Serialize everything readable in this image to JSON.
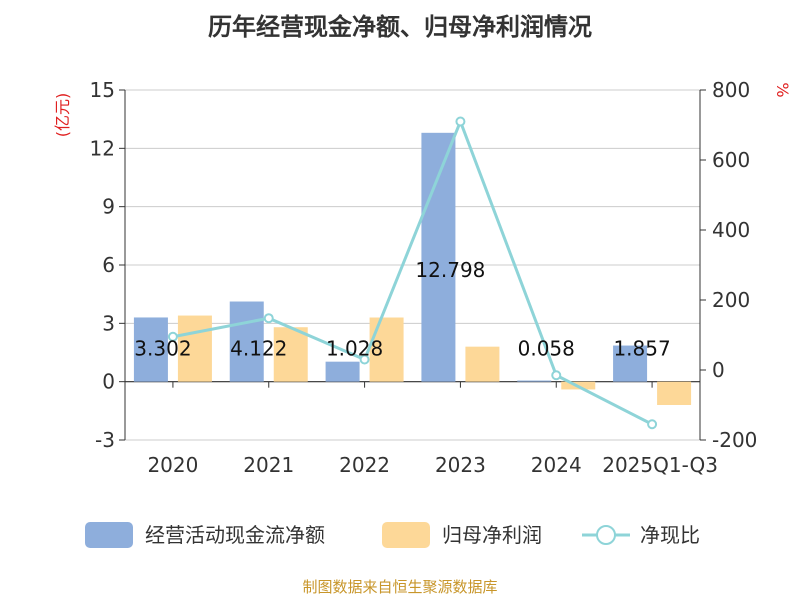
{
  "title": "历年经营现金净额、归母净利润情况",
  "source": "制图数据来自恒生聚源数据库",
  "chart_data": {
    "type": "bar",
    "title": "历年经营现金净额、归母净利润情况",
    "categories": [
      "2020",
      "2021",
      "2022",
      "2023",
      "2024",
      "2025Q1-Q3"
    ],
    "y_left": {
      "label": "(亿元)",
      "min": -3,
      "max": 15,
      "ticks": [
        "15",
        "12",
        "9",
        "6",
        "3",
        "0",
        "-3"
      ]
    },
    "y_right": {
      "label": "%",
      "min": -200,
      "max": 800,
      "ticks": [
        "800",
        "600",
        "400",
        "200",
        "0",
        "-200"
      ]
    },
    "series": [
      {
        "name": "经营活动现金流净额",
        "type": "bar",
        "axis": "left",
        "color": "#8eaedc",
        "values": [
          3.302,
          4.122,
          1.028,
          12.798,
          0.058,
          1.857
        ],
        "labels": [
          "3.302",
          "4.122",
          "1.028",
          "12.798",
          "0.058",
          "1.857"
        ]
      },
      {
        "name": "归母净利润",
        "type": "bar",
        "axis": "left",
        "color": "#fdd898",
        "values": [
          3.4,
          2.8,
          3.3,
          1.8,
          -0.4,
          -1.2
        ]
      },
      {
        "name": "净现比",
        "type": "line",
        "axis": "right",
        "color": "#8ed4d8",
        "values": [
          95,
          148,
          30,
          710,
          -15,
          -155
        ]
      }
    ],
    "grid": true,
    "legend_position": "bottom"
  }
}
